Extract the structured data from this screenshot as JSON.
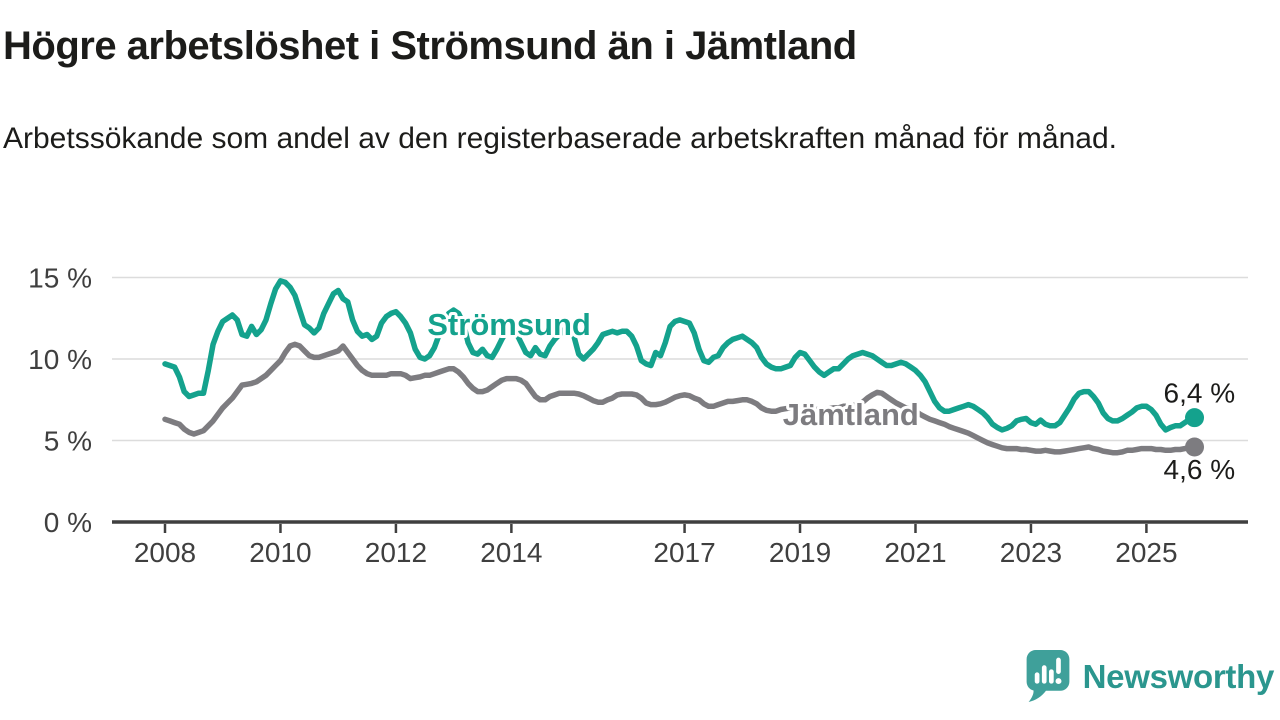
{
  "header": {
    "title": "Högre arbetslöshet i Strömsund än i Jämtland",
    "subtitle": "Arbetssökande som andel av den registerbaserade arbetskraften månad för månad."
  },
  "chart_data": {
    "type": "line",
    "x_unit": "month",
    "start_year": 2008,
    "xlim": [
      2007.7,
      2026.1
    ],
    "ylim": [
      0,
      16.6
    ],
    "grid": "horizontal",
    "x_axis": {
      "tick_years": [
        2008,
        2010,
        2012,
        2014,
        2017,
        2019,
        2021,
        2023,
        2025
      ],
      "tick_labels": [
        "2008",
        "2010",
        "2012",
        "2014",
        "2017",
        "2019",
        "2021",
        "2023",
        "2025"
      ]
    },
    "y_axis": {
      "tick_values": [
        0,
        5,
        10,
        15
      ],
      "tick_labels": [
        "0 %",
        "5 %",
        "10 %",
        "15 %"
      ]
    },
    "series": [
      {
        "name": "Jämtland",
        "color": "#7d7c80",
        "end_label": "4,6 %",
        "end_value": 4.6,
        "inline_label": {
          "text": "Jämtland",
          "x": 2019.88,
          "y": 6.63
        },
        "values": [
          6.3,
          6.2,
          6.1,
          6.0,
          5.7,
          5.5,
          5.4,
          5.5,
          5.6,
          5.9,
          6.2,
          6.6,
          7.0,
          7.3,
          7.6,
          8.0,
          8.4,
          8.45,
          8.5,
          8.6,
          8.8,
          9.0,
          9.3,
          9.6,
          9.9,
          10.4,
          10.8,
          10.9,
          10.8,
          10.5,
          10.2,
          10.1,
          10.1,
          10.2,
          10.3,
          10.4,
          10.5,
          10.8,
          10.4,
          10.0,
          9.6,
          9.3,
          9.1,
          9.0,
          9.0,
          9.0,
          9.0,
          9.1,
          9.1,
          9.1,
          9.0,
          8.8,
          8.85,
          8.9,
          9.0,
          9.0,
          9.1,
          9.2,
          9.3,
          9.4,
          9.4,
          9.2,
          8.9,
          8.5,
          8.2,
          8.0,
          8.0,
          8.1,
          8.3,
          8.5,
          8.7,
          8.8,
          8.8,
          8.8,
          8.7,
          8.5,
          8.1,
          7.7,
          7.5,
          7.5,
          7.7,
          7.8,
          7.9,
          7.9,
          7.9,
          7.9,
          7.85,
          7.75,
          7.6,
          7.45,
          7.35,
          7.35,
          7.5,
          7.6,
          7.8,
          7.85,
          7.85,
          7.85,
          7.8,
          7.6,
          7.3,
          7.2,
          7.2,
          7.25,
          7.35,
          7.5,
          7.65,
          7.75,
          7.8,
          7.75,
          7.6,
          7.5,
          7.25,
          7.1,
          7.1,
          7.2,
          7.3,
          7.4,
          7.4,
          7.45,
          7.5,
          7.5,
          7.4,
          7.25,
          7.0,
          6.85,
          6.8,
          6.8,
          6.9,
          6.95,
          7.0,
          7.05,
          7.1,
          7.05,
          7.0,
          6.9,
          6.9,
          6.9,
          6.95,
          7.0,
          7.0,
          7.1,
          7.1,
          7.15,
          7.2,
          7.35,
          7.6,
          7.8,
          7.95,
          7.9,
          7.7,
          7.5,
          7.3,
          7.15,
          7.0,
          6.9,
          6.8,
          6.6,
          6.45,
          6.3,
          6.2,
          6.1,
          6.0,
          5.85,
          5.75,
          5.65,
          5.55,
          5.45,
          5.3,
          5.15,
          5.0,
          4.85,
          4.75,
          4.65,
          4.55,
          4.5,
          4.5,
          4.5,
          4.45,
          4.45,
          4.4,
          4.35,
          4.35,
          4.4,
          4.35,
          4.3,
          4.3,
          4.35,
          4.4,
          4.45,
          4.5,
          4.55,
          4.6,
          4.5,
          4.45,
          4.35,
          4.3,
          4.25,
          4.25,
          4.3,
          4.4,
          4.4,
          4.45,
          4.5,
          4.5,
          4.5,
          4.45,
          4.45,
          4.4,
          4.4,
          4.45,
          4.45,
          4.5,
          4.55,
          4.6
        ]
      },
      {
        "name": "Strömsund",
        "color": "#14a28d",
        "end_label": "6,4 %",
        "end_value": 6.4,
        "inline_label": {
          "text": "Strömsund",
          "x": 2013.96,
          "y": 12.15
        },
        "values": [
          9.7,
          9.6,
          9.5,
          8.9,
          8.0,
          7.7,
          7.8,
          7.9,
          7.9,
          9.3,
          10.9,
          11.7,
          12.3,
          12.5,
          12.7,
          12.4,
          11.5,
          11.4,
          12.0,
          11.5,
          11.8,
          12.4,
          13.4,
          14.3,
          14.8,
          14.7,
          14.4,
          13.9,
          13.0,
          12.1,
          11.9,
          11.6,
          11.9,
          12.8,
          13.4,
          14.0,
          14.2,
          13.7,
          13.5,
          12.4,
          11.7,
          11.4,
          11.5,
          11.2,
          11.4,
          12.2,
          12.6,
          12.8,
          12.9,
          12.6,
          12.2,
          11.6,
          10.6,
          10.1,
          10.0,
          10.2,
          10.7,
          11.5,
          12.3,
          12.8,
          13.0,
          12.8,
          12.2,
          11.0,
          10.4,
          10.3,
          10.6,
          10.2,
          10.1,
          10.6,
          11.2,
          11.7,
          11.9,
          11.6,
          11.0,
          10.4,
          10.2,
          10.7,
          10.3,
          10.2,
          10.8,
          11.2,
          11.5,
          11.8,
          11.9,
          11.4,
          10.3,
          10.0,
          10.3,
          10.6,
          11.0,
          11.5,
          11.6,
          11.7,
          11.6,
          11.7,
          11.7,
          11.4,
          10.8,
          9.9,
          9.7,
          9.6,
          10.4,
          10.2,
          11.0,
          12.0,
          12.3,
          12.4,
          12.3,
          12.2,
          11.6,
          10.6,
          9.9,
          9.8,
          10.1,
          10.2,
          10.7,
          11.0,
          11.2,
          11.3,
          11.4,
          11.2,
          11.0,
          10.7,
          10.1,
          9.7,
          9.5,
          9.4,
          9.4,
          9.5,
          9.6,
          10.1,
          10.4,
          10.3,
          9.9,
          9.5,
          9.2,
          9.0,
          9.2,
          9.4,
          9.4,
          9.7,
          10.0,
          10.2,
          10.3,
          10.4,
          10.3,
          10.2,
          10.0,
          9.8,
          9.6,
          9.6,
          9.7,
          9.8,
          9.7,
          9.5,
          9.3,
          9.0,
          8.6,
          8.0,
          7.4,
          7.0,
          6.8,
          6.8,
          6.9,
          7.0,
          7.1,
          7.2,
          7.1,
          6.9,
          6.7,
          6.4,
          6.0,
          5.8,
          5.65,
          5.75,
          5.9,
          6.2,
          6.3,
          6.35,
          6.1,
          6.0,
          6.25,
          6.0,
          5.9,
          5.9,
          6.1,
          6.55,
          7.0,
          7.55,
          7.9,
          8.0,
          8.0,
          7.7,
          7.3,
          6.7,
          6.35,
          6.2,
          6.2,
          6.35,
          6.55,
          6.75,
          7.0,
          7.1,
          7.1,
          6.9,
          6.55,
          6.0,
          5.65,
          5.8,
          5.9,
          5.9,
          6.1,
          6.3,
          6.4
        ]
      }
    ]
  },
  "branding": {
    "name": "Newsworthy",
    "icon": "newsworthy-logo-icon",
    "text_color": "#2b968e",
    "icon_color": "#3fa09a"
  },
  "colors": {
    "stromsund_line": "#14a28d",
    "jamtland_line": "#7d7c80",
    "grid": "#dcdcdc",
    "axis": "#3f3f3f",
    "text": "#1c1c1a"
  }
}
